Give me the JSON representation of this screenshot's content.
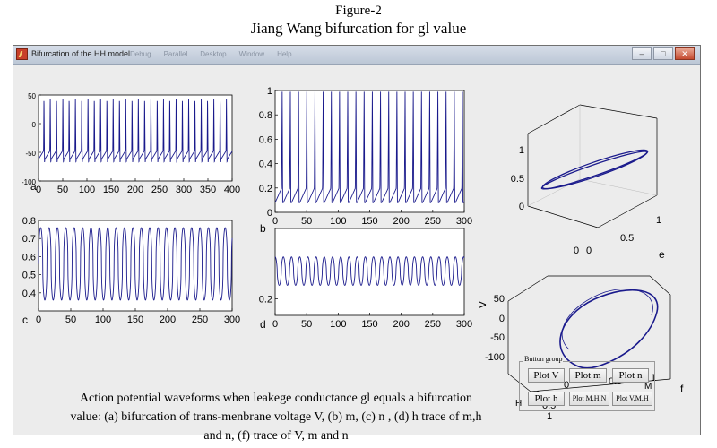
{
  "figure": {
    "label": "Figure-2",
    "title": "Jiang Wang bifurcation for gl value"
  },
  "window": {
    "title": "Bifurcation of the HH model",
    "menu": [
      "Debug",
      "Parallel",
      "Desktop",
      "Window",
      "Help"
    ],
    "controls": [
      "minimize",
      "maximize",
      "close"
    ]
  },
  "caption": {
    "lines": [
      "Action potential waveforms when leakege conductance gl equals a bifurcation",
      "value: (a) bifurcation of trans-menbrane voltage V, (b) m, (c) n , (d) h trace of m,h",
      "and n, (f) trace of V, m and n"
    ]
  },
  "button_group": {
    "label": "Button group",
    "buttons": [
      {
        "label": "Plot V"
      },
      {
        "label": "Plot m"
      },
      {
        "label": "Plot n"
      },
      {
        "label": "Plot h"
      },
      {
        "label": "Plot M,H,N"
      },
      {
        "label": "Plot V,M,H"
      }
    ]
  },
  "arrow_marker": ">",
  "colors": {
    "trace": "#1a1a8c",
    "axes_bg": "#ffffff",
    "figure_bg": "#ececec"
  },
  "chart_data": [
    {
      "panel": "a",
      "type": "line",
      "title": "",
      "xlabel": "",
      "ylabel": "",
      "xlim": [
        0,
        400
      ],
      "ylim": [
        -100,
        50
      ],
      "x_ticks": [
        0,
        50,
        100,
        150,
        200,
        250,
        300,
        350,
        400
      ],
      "y_ticks": [
        50,
        0,
        -50,
        -100
      ],
      "x_tick_labels": [
        "0",
        "50",
        "100",
        "150",
        "200",
        "250",
        "300",
        "350",
        "400"
      ],
      "y_tick_labels": [
        "50",
        "0",
        "-50",
        "-100"
      ],
      "series": [
        {
          "peak_count": 31,
          "baseline": -62,
          "peak": 48,
          "period": 13
        }
      ]
    },
    {
      "panel": "b",
      "type": "line",
      "title": "",
      "xlabel": "",
      "ylabel": "",
      "xlim": [
        0,
        300
      ],
      "ylim": [
        0,
        1
      ],
      "x_ticks": [
        0,
        50,
        100,
        150,
        200,
        250,
        300
      ],
      "y_ticks": [
        0,
        0.2,
        0.4,
        0.6,
        0.8,
        1
      ],
      "x_tick_labels": [
        "0",
        "50",
        "100",
        "150",
        "200",
        "250",
        "300"
      ],
      "y_tick_labels": [
        "0",
        "0.2",
        "0.4",
        "0.6",
        "0.8",
        "1"
      ],
      "series": [
        {
          "peak_count": 23,
          "baseline": 0.08,
          "peak": 1.0,
          "period": 13
        }
      ]
    },
    {
      "panel": "c",
      "type": "line",
      "title": "",
      "xlabel": "",
      "ylabel": "",
      "xlim": [
        0,
        300
      ],
      "ylim": [
        0.3,
        0.8
      ],
      "x_ticks": [
        0,
        50,
        100,
        150,
        200,
        250,
        300
      ],
      "y_ticks": [
        0.4,
        0.5,
        0.6,
        0.7,
        0.8
      ],
      "x_tick_labels": [
        "0",
        "50",
        "100",
        "150",
        "200",
        "250",
        "300"
      ],
      "y_tick_labels": [
        "0.4",
        "0.5",
        "0.6",
        "0.7",
        "0.8"
      ],
      "series": [
        {
          "cycle_count": 23,
          "min": 0.36,
          "max": 0.76,
          "period": 13
        }
      ]
    },
    {
      "panel": "d",
      "type": "line",
      "title": "",
      "xlabel": "",
      "ylabel": "",
      "xlim": [
        0,
        300
      ],
      "ylim": [
        0.1,
        0.62
      ],
      "x_ticks": [
        0,
        50,
        100,
        150,
        200,
        250,
        300
      ],
      "y_ticks": [
        0.2
      ],
      "x_tick_labels": [
        "0",
        "50",
        "100",
        "150",
        "200",
        "250",
        "300"
      ],
      "y_tick_labels": [
        "0.2"
      ],
      "series": [
        {
          "cycle_count": 23,
          "min": 0.28,
          "max": 0.45,
          "period": 13
        }
      ]
    },
    {
      "panel": "e",
      "type": "line3d",
      "title": "",
      "xlabel": "",
      "ylabel": "",
      "zlabel": "",
      "xlim": [
        0,
        1
      ],
      "ylim": [
        0,
        1
      ],
      "zlim": [
        0,
        1
      ],
      "x_tick_labels": [
        "0",
        "0.5",
        "1"
      ],
      "y_tick_labels": [
        "0",
        "0.5",
        "1"
      ],
      "z_tick_labels": [
        "0",
        "0.5",
        "1"
      ]
    },
    {
      "panel": "f",
      "type": "line3d",
      "title": "",
      "xlabel": "M",
      "ylabel": "H",
      "zlabel": "",
      "xlim": [
        0,
        1
      ],
      "ylim": [
        0,
        1
      ],
      "zlim": [
        -100,
        50
      ],
      "x_tick_labels": [
        "0",
        "0.5",
        "1"
      ],
      "y_tick_labels": [
        "0",
        "0.5",
        "1"
      ],
      "z_tick_labels": [
        "50",
        "0",
        "-50",
        "-100"
      ]
    }
  ]
}
